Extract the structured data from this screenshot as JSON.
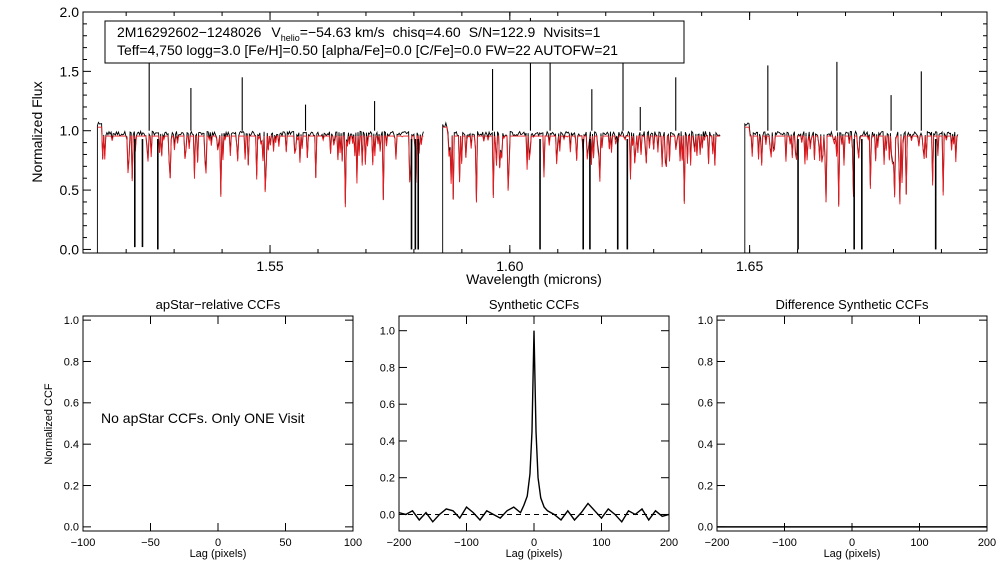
{
  "chart_data": [
    {
      "type": "line",
      "id": "spectrum",
      "info_line1": {
        "star": "2M16292602−1248026",
        "v_prefix": "V",
        "v_sub": "helio",
        "v_value": "=−54.63 km/s",
        "chisq": "chisq=4.60",
        "snr": "S/N=122.9",
        "nvisits": "Nvisits=1"
      },
      "info_line2": "Teff=4,750 logg=3.0 [Fe/H]=0.50 [alpha/Fe]=0.0 [C/Fe]=0.0 FW=22 AUTOFW=21",
      "xlabel": "Wavelength (microns)",
      "ylabel": "Normalized Flux",
      "xlim": [
        1.511,
        1.6995
      ],
      "ylim": [
        -0.03,
        2.0
      ],
      "xticks": [
        {
          "v": 1.55,
          "label": "1.55"
        },
        {
          "v": 1.6,
          "label": "1.60"
        },
        {
          "v": 1.65,
          "label": "1.65"
        }
      ],
      "yticks": [
        {
          "v": 0.0,
          "label": "0.0"
        },
        {
          "v": 0.5,
          "label": "0.5"
        },
        {
          "v": 1.0,
          "label": "1.0"
        },
        {
          "v": 1.5,
          "label": "1.5"
        },
        {
          "v": 2.0,
          "label": "2.0"
        }
      ],
      "chips": [
        [
          1.514,
          1.582
        ],
        [
          1.586,
          1.644
        ],
        [
          1.649,
          1.6935
        ]
      ],
      "series": [
        {
          "role": "observed",
          "color": "#000000"
        },
        {
          "role": "synthetic model",
          "color": "#e8191e"
        }
      ],
      "strong_lines": [
        {
          "x": 1.5218,
          "y": 0.02
        },
        {
          "x": 1.5234,
          "y": 0.02
        },
        {
          "x": 1.5266,
          "y": 0.0
        },
        {
          "x": 1.5795,
          "y": 0.0
        },
        {
          "x": 1.5803,
          "y": 0.0
        },
        {
          "x": 1.5809,
          "y": 0.0
        },
        {
          "x": 1.6063,
          "y": 0.0
        },
        {
          "x": 1.6153,
          "y": 0.0
        },
        {
          "x": 1.6167,
          "y": 0.0
        },
        {
          "x": 1.6225,
          "y": 0.0
        },
        {
          "x": 1.6245,
          "y": 0.0
        },
        {
          "x": 1.6601,
          "y": 0.0
        },
        {
          "x": 1.6718,
          "y": 0.0
        },
        {
          "x": 1.6734,
          "y": 0.0
        },
        {
          "x": 1.6888,
          "y": 0.0
        }
      ],
      "emission_spikes": [
        {
          "x": 1.5248,
          "y": 1.7
        },
        {
          "x": 1.5335,
          "y": 1.36
        },
        {
          "x": 1.5442,
          "y": 1.45
        },
        {
          "x": 1.5574,
          "y": 1.22
        },
        {
          "x": 1.5718,
          "y": 1.25
        },
        {
          "x": 1.5964,
          "y": 1.52
        },
        {
          "x": 1.6043,
          "y": 1.95
        },
        {
          "x": 1.6084,
          "y": 1.73
        },
        {
          "x": 1.6171,
          "y": 1.35
        },
        {
          "x": 1.6236,
          "y": 1.8
        },
        {
          "x": 1.6272,
          "y": 1.2
        },
        {
          "x": 1.6346,
          "y": 1.45
        },
        {
          "x": 1.6538,
          "y": 1.55
        },
        {
          "x": 1.6682,
          "y": 1.58
        },
        {
          "x": 1.6795,
          "y": 1.3
        },
        {
          "x": 1.6858,
          "y": 1.5
        }
      ]
    },
    {
      "type": "line",
      "id": "apstar-ccf",
      "title": "apStar−relative CCFs",
      "ylabel": "Normalized CCF",
      "xlabel": "Lag (pixels)",
      "xlim": [
        -100,
        100
      ],
      "ylim": [
        -0.02,
        1.02
      ],
      "xticks": [
        {
          "v": -100,
          "label": "−100"
        },
        {
          "v": -50,
          "label": "−50"
        },
        {
          "v": 0,
          "label": "0"
        },
        {
          "v": 50,
          "label": "50"
        },
        {
          "v": 100,
          "label": "100"
        }
      ],
      "yticks": [
        {
          "v": 0.0,
          "label": "0.0"
        },
        {
          "v": 0.2,
          "label": "0.2"
        },
        {
          "v": 0.4,
          "label": "0.4"
        },
        {
          "v": 0.6,
          "label": "0.6"
        },
        {
          "v": 0.8,
          "label": "0.8"
        },
        {
          "v": 1.0,
          "label": "1.0"
        }
      ],
      "note": "No apStar CCFs.  Only ONE Visit"
    },
    {
      "type": "line",
      "id": "synthetic-ccf",
      "title": "Synthetic CCFs",
      "xlabel": "Lag (pixels)",
      "xlim": [
        -200,
        200
      ],
      "ylim": [
        -0.09,
        1.08
      ],
      "xticks": [
        {
          "v": -200,
          "label": "−200"
        },
        {
          "v": -100,
          "label": "−100"
        },
        {
          "v": 0,
          "label": "0"
        },
        {
          "v": 100,
          "label": "100"
        },
        {
          "v": 200,
          "label": "200"
        }
      ],
      "yticks": [
        {
          "v": 0.0,
          "label": "0.0"
        },
        {
          "v": 0.2,
          "label": "0.2"
        },
        {
          "v": 0.4,
          "label": "0.4"
        },
        {
          "v": 0.6,
          "label": "0.6"
        },
        {
          "v": 0.8,
          "label": "0.8"
        },
        {
          "v": 1.0,
          "label": "1.0"
        }
      ],
      "zero_line": 0.0,
      "series": [
        {
          "x": [
            -200,
            -190,
            -180,
            -170,
            -160,
            -150,
            -140,
            -130,
            -120,
            -110,
            -100,
            -90,
            -80,
            -70,
            -60,
            -50,
            -40,
            -30,
            -20,
            -15,
            -10,
            -6,
            -3,
            0,
            3,
            6,
            10,
            15,
            20,
            30,
            40,
            50,
            60,
            70,
            80,
            90,
            100,
            110,
            120,
            130,
            140,
            150,
            160,
            170,
            180,
            190,
            200
          ],
          "y": [
            0.01,
            0.0,
            0.02,
            -0.03,
            0.01,
            -0.04,
            0.0,
            0.03,
            0.02,
            -0.02,
            0.04,
            0.01,
            -0.03,
            0.02,
            0.0,
            -0.02,
            0.02,
            0.04,
            0.01,
            0.05,
            0.1,
            0.22,
            0.45,
            1.0,
            0.45,
            0.2,
            0.09,
            0.04,
            0.02,
            0.0,
            -0.03,
            0.02,
            -0.03,
            0.01,
            0.06,
            0.02,
            -0.02,
            0.03,
            0.0,
            -0.04,
            0.02,
            0.0,
            0.03,
            -0.03,
            0.02,
            -0.01,
            0.0
          ]
        }
      ]
    },
    {
      "type": "line",
      "id": "difference-ccf",
      "title": "Difference Synthetic CCFs",
      "xlabel": "Lag (pixels)",
      "xlim": [
        -200,
        200
      ],
      "ylim": [
        -0.02,
        1.02
      ],
      "xticks": [
        {
          "v": -200,
          "label": "−200"
        },
        {
          "v": -100,
          "label": "−100"
        },
        {
          "v": 0,
          "label": "0"
        },
        {
          "v": 100,
          "label": "100"
        },
        {
          "v": 200,
          "label": "200"
        }
      ],
      "yticks": [
        {
          "v": 0.0,
          "label": "0.0"
        },
        {
          "v": 0.2,
          "label": "0.2"
        },
        {
          "v": 0.4,
          "label": "0.4"
        },
        {
          "v": 0.6,
          "label": "0.6"
        },
        {
          "v": 0.8,
          "label": "0.8"
        },
        {
          "v": 1.0,
          "label": "1.0"
        }
      ],
      "series": [
        {
          "x": [
            -200,
            200
          ],
          "y": [
            0.0,
            0.0
          ]
        }
      ]
    }
  ]
}
